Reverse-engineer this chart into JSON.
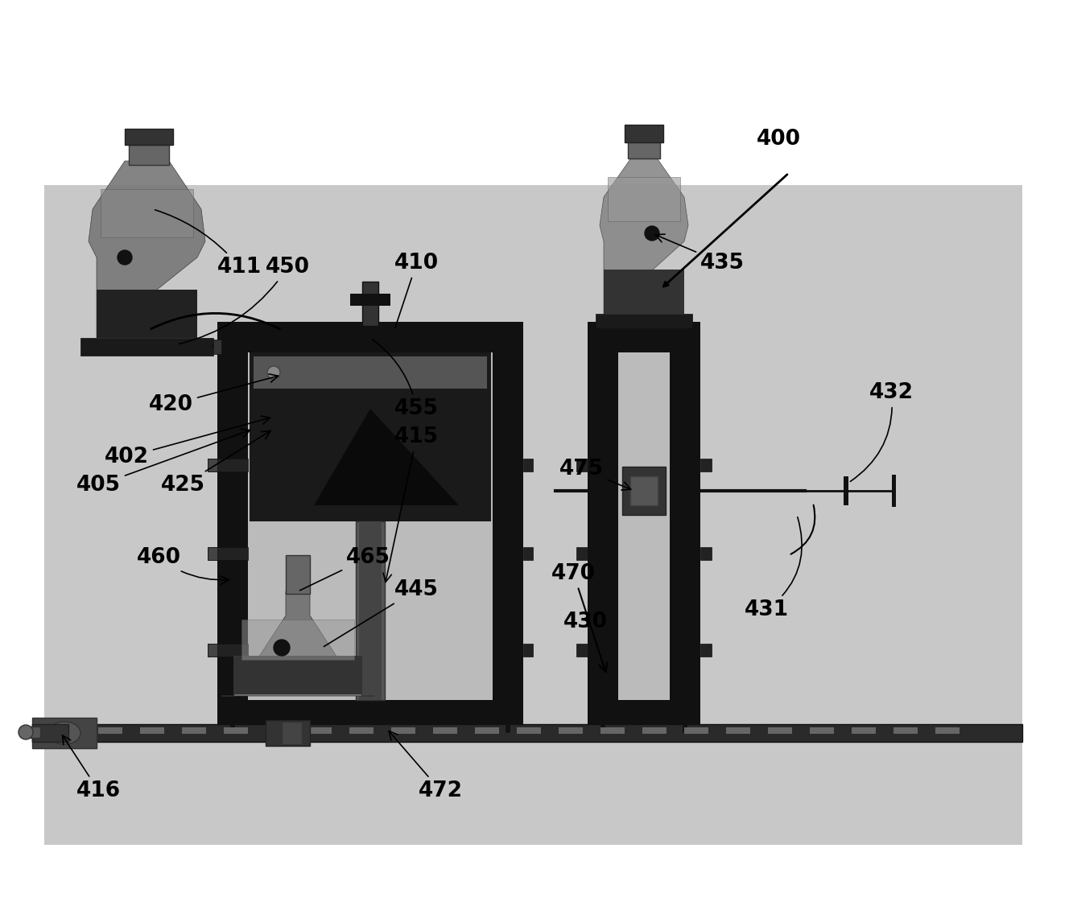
{
  "bg_color": "#ffffff",
  "diagram_bg": "#cccccc",
  "black": "#000000",
  "dark": "#111111",
  "dark2": "#222222",
  "med": "#555555",
  "med2": "#888888",
  "light": "#aaaaaa",
  "lighter": "#bbbbbb"
}
